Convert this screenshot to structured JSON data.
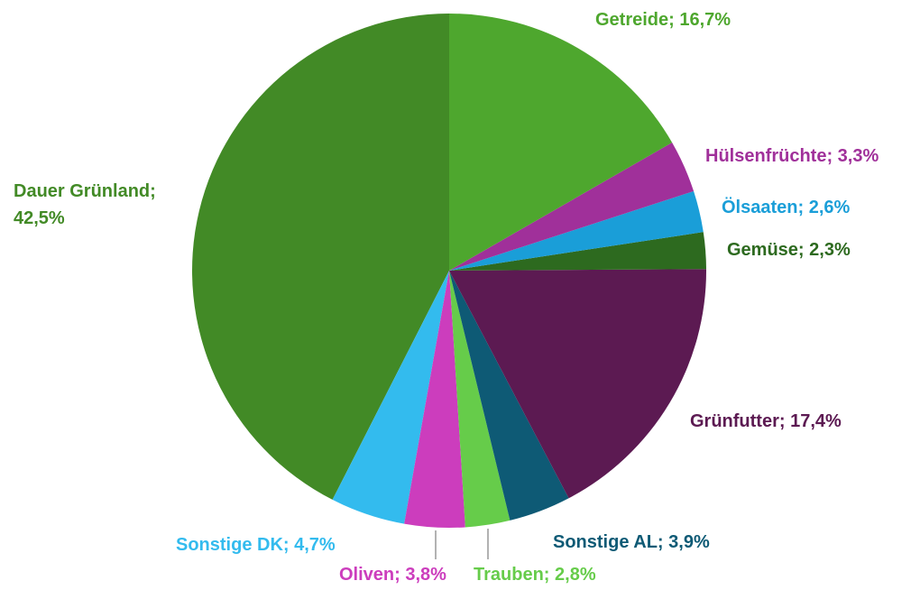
{
  "chart_data": {
    "type": "pie",
    "values": [
      16.7,
      3.3,
      2.6,
      2.3,
      17.4,
      3.9,
      2.8,
      3.8,
      4.7,
      42.5
    ],
    "value_labels": [
      "Getreide; 16,7%",
      "Hülsenfrüchte; 3,3%",
      "Ölsaaten; 2,6%",
      "Gemüse; 2,3%",
      "Grünfutter; 17,4%",
      "Sonstige AL; 3,9%",
      "Trauben; 2,8%",
      "Oliven; 3,8%",
      "Sonstige DK; 4,7%",
      "Dauer Grünland; 42,5%"
    ],
    "colors": [
      "#4ea72e",
      "#a0309a",
      "#1a9ed8",
      "#2d6a1f",
      "#5c1a52",
      "#0e5a75",
      "#66cc4a",
      "#cc3dbd",
      "#33bbee",
      "#428a26"
    ]
  }
}
